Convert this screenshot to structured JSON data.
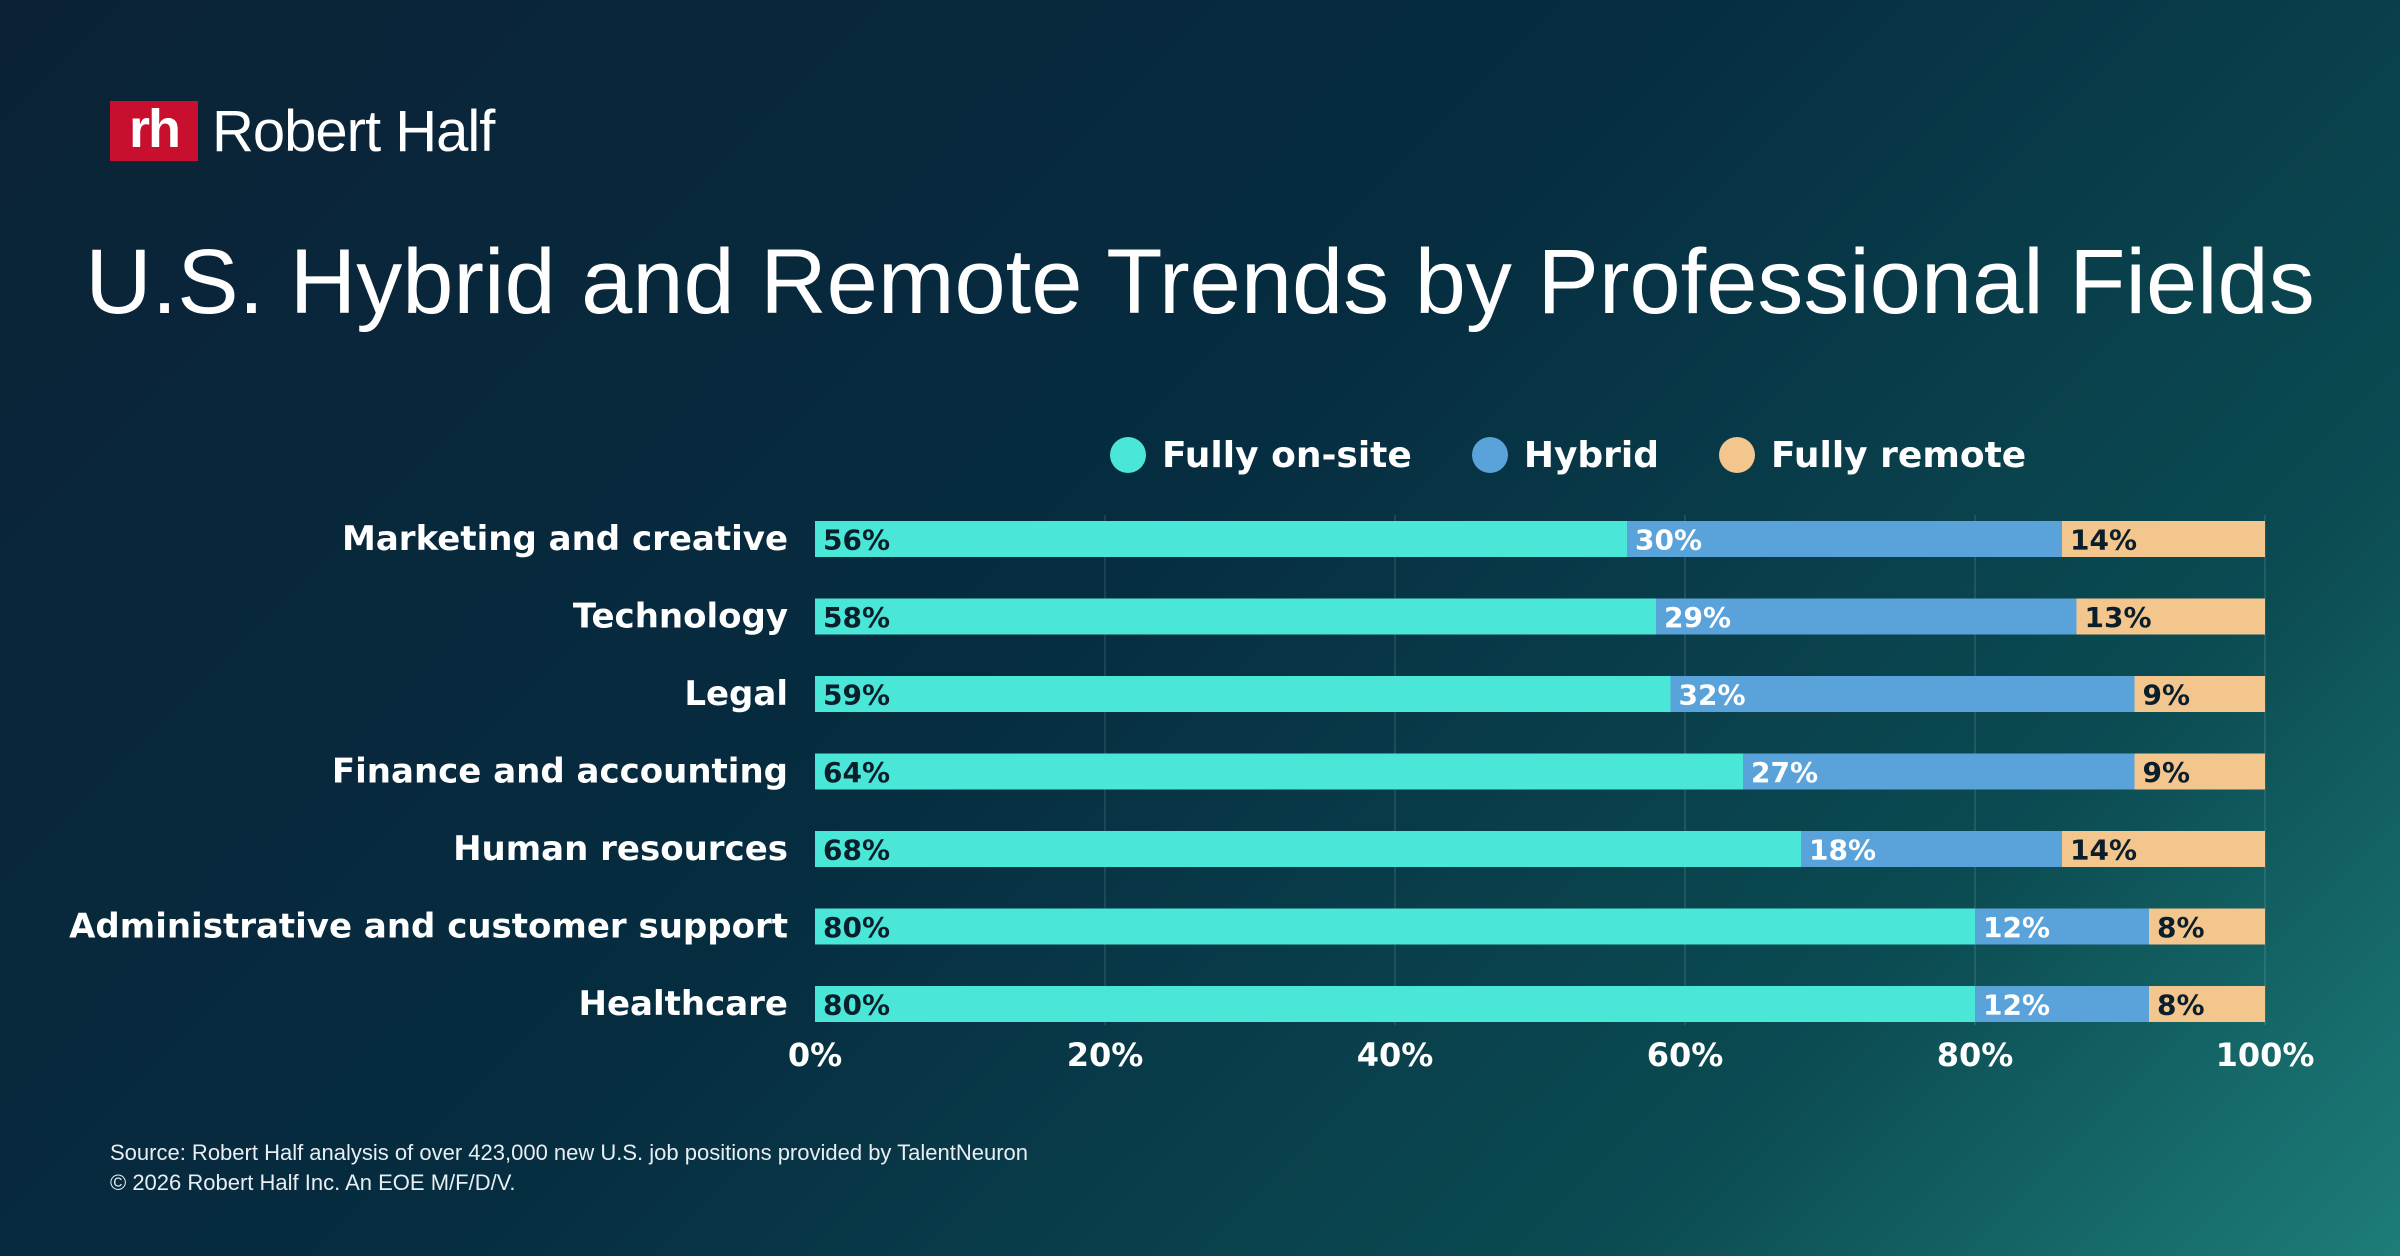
{
  "brand": {
    "mark": "rh",
    "name": "Robert Half",
    "mark_color": "#c8102e"
  },
  "title": "U.S. Hybrid and Remote Trends by Professional Fields",
  "legend": [
    {
      "label": "Fully on-site",
      "color": "#4ae6d8"
    },
    {
      "label": "Hybrid",
      "color": "#5aa3da"
    },
    {
      "label": "Fully remote",
      "color": "#f3c68e"
    }
  ],
  "footer": {
    "source": "Source: Robert Half analysis of over 423,000 new U.S. job positions provided by TalentNeuron",
    "copyright": "© 2026 Robert Half Inc. An EOE M/F/D/V."
  },
  "chart_data": {
    "type": "bar",
    "orientation": "horizontal",
    "stacked": true,
    "categories": [
      "Marketing and creative",
      "Technology",
      "Legal",
      "Finance and accounting",
      "Human resources",
      "Administrative and customer support",
      "Healthcare"
    ],
    "series": [
      {
        "name": "Fully on-site",
        "values": [
          56,
          58,
          59,
          64,
          68,
          80,
          80
        ],
        "labels": [
          "56%",
          "58%",
          "59%",
          "64%",
          "68%",
          "80%",
          "80%"
        ],
        "color": "#4ae6d8",
        "label_color": "#0b1e2b"
      },
      {
        "name": "Hybrid",
        "values": [
          30,
          29,
          32,
          27,
          18,
          12,
          12
        ],
        "labels": [
          "30%",
          "29%",
          "32%",
          "27%",
          "18%",
          "12%",
          "12%"
        ],
        "color": "#5aa3da",
        "label_color": "#ffffff"
      },
      {
        "name": "Fully remote",
        "values": [
          14,
          13,
          9,
          9,
          14,
          8,
          8
        ],
        "labels": [
          "14%",
          "13%",
          "9%",
          "9%",
          "14%",
          "8%",
          "8%"
        ],
        "color": "#f3c68e",
        "label_color": "#0b1e2b"
      }
    ],
    "xlim": [
      0,
      100
    ],
    "x_ticks": [
      0,
      20,
      40,
      60,
      80,
      100
    ],
    "x_tick_labels": [
      "0%",
      "20%",
      "40%",
      "60%",
      "80%",
      "100%"
    ],
    "grid": true,
    "legend_position": "top"
  }
}
